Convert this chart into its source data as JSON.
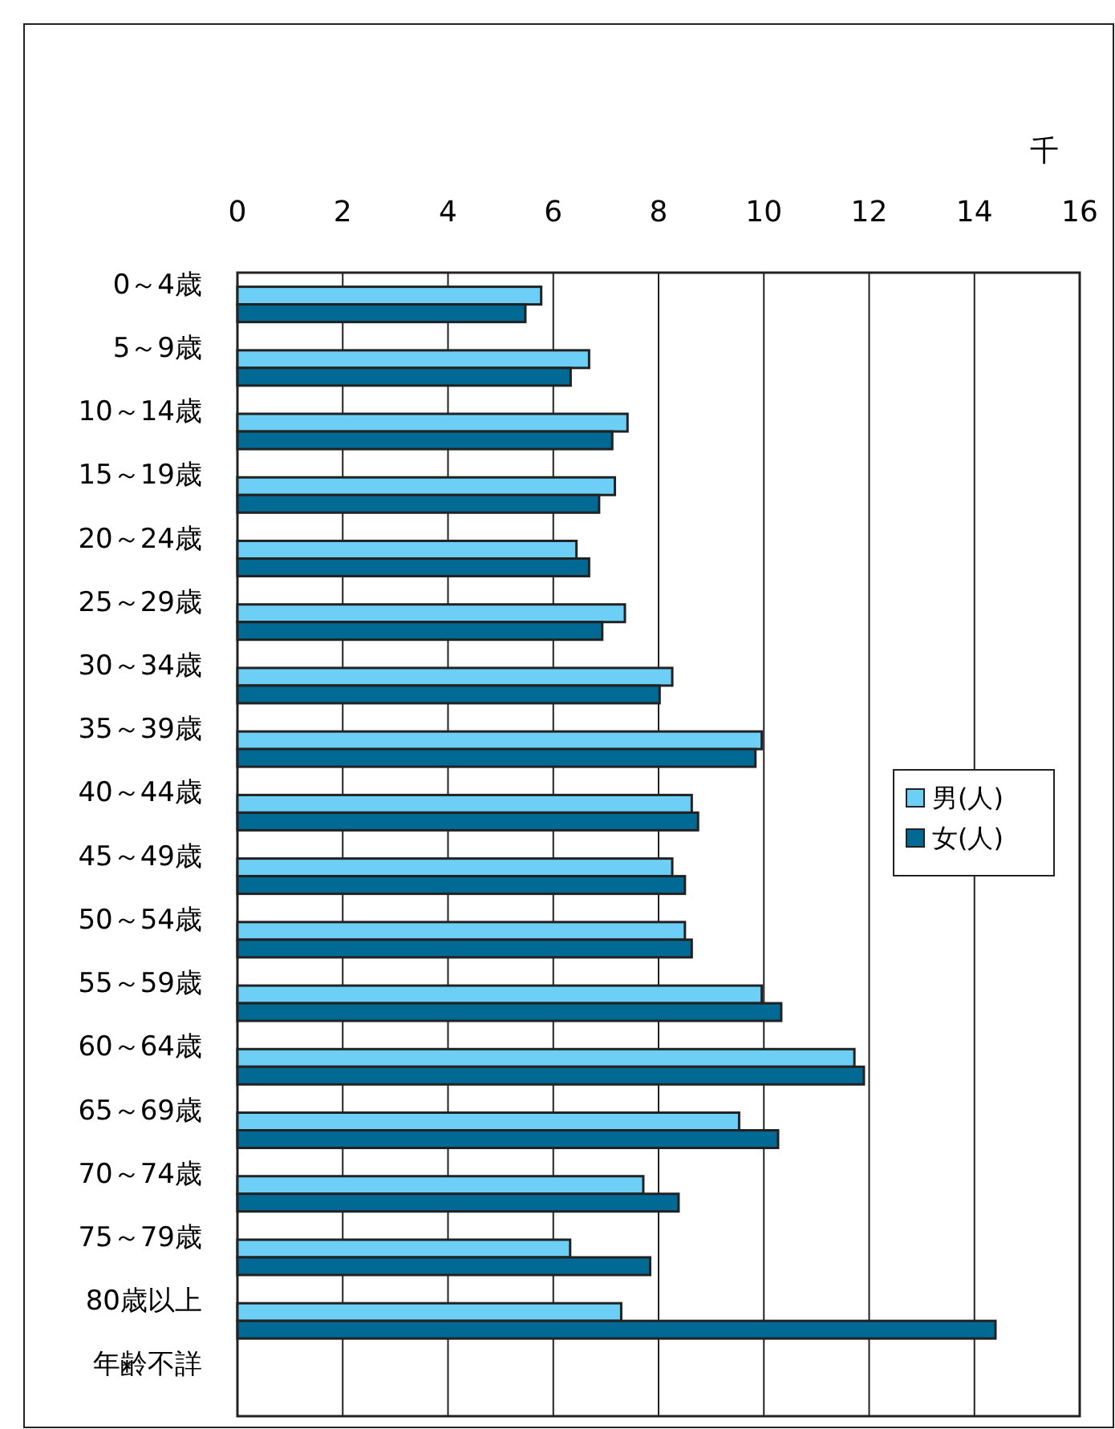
{
  "chart_data": {
    "type": "bar",
    "orientation": "horizontal",
    "xlabel": "千",
    "categories": [
      "0～4歳",
      "5～9歳",
      "10～14歳",
      "15～19歳",
      "20～24歳",
      "25～29歳",
      "30～34歳",
      "35～39歳",
      "40～44歳",
      "45～49歳",
      "50～54歳",
      "55～59歳",
      "60～64歳",
      "65～69歳",
      "70～74歳",
      "75～79歳",
      "80歳以上",
      "年齢不詳"
    ],
    "series": [
      {
        "name": "男(人)",
        "color": "#6dcff6",
        "values": [
          5.77,
          6.68,
          7.41,
          7.17,
          6.44,
          7.36,
          8.26,
          9.96,
          8.63,
          8.26,
          8.5,
          9.96,
          11.72,
          9.53,
          7.71,
          6.32,
          7.29,
          null
        ]
      },
      {
        "name": "女(人)",
        "color": "#006994",
        "values": [
          5.47,
          6.33,
          7.12,
          6.87,
          6.68,
          6.93,
          8.02,
          9.84,
          8.75,
          8.5,
          8.63,
          10.33,
          11.9,
          10.27,
          8.38,
          7.84,
          14.4,
          null
        ]
      }
    ],
    "xlim": [
      0,
      16
    ],
    "xticks": [
      0,
      2,
      4,
      6,
      8,
      10,
      12,
      14,
      16
    ],
    "grid": "x",
    "legend": "right"
  }
}
